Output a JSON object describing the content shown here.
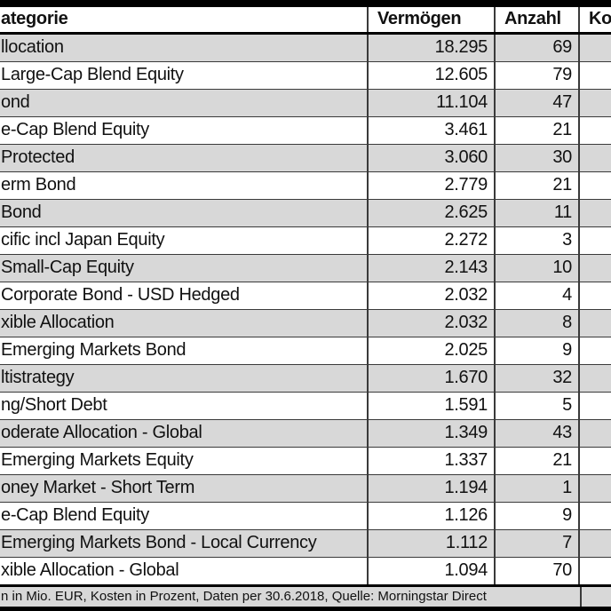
{
  "chart_data": {
    "type": "table",
    "title_visible": "ategorie",
    "columns": [
      "ategorie",
      "Vermögen",
      "Anzahl",
      "Ko"
    ],
    "rows": [
      {
        "kategorie": "llocation",
        "vermoegen": "18.295",
        "anzahl": "69",
        "kosten": ""
      },
      {
        "kategorie": "Large-Cap Blend Equity",
        "vermoegen": "12.605",
        "anzahl": "79",
        "kosten": ""
      },
      {
        "kategorie": "ond",
        "vermoegen": "11.104",
        "anzahl": "47",
        "kosten": ""
      },
      {
        "kategorie": "e-Cap Blend Equity",
        "vermoegen": "3.461",
        "anzahl": "21",
        "kosten": ""
      },
      {
        "kategorie": "Protected",
        "vermoegen": "3.060",
        "anzahl": "30",
        "kosten": ""
      },
      {
        "kategorie": "erm Bond",
        "vermoegen": "2.779",
        "anzahl": "21",
        "kosten": ""
      },
      {
        "kategorie": "Bond",
        "vermoegen": "2.625",
        "anzahl": "11",
        "kosten": ""
      },
      {
        "kategorie": "cific incl Japan Equity",
        "vermoegen": "2.272",
        "anzahl": "3",
        "kosten": ""
      },
      {
        "kategorie": "Small-Cap Equity",
        "vermoegen": "2.143",
        "anzahl": "10",
        "kosten": ""
      },
      {
        "kategorie": "Corporate Bond - USD Hedged",
        "vermoegen": "2.032",
        "anzahl": "4",
        "kosten": ""
      },
      {
        "kategorie": "xible Allocation",
        "vermoegen": "2.032",
        "anzahl": "8",
        "kosten": ""
      },
      {
        "kategorie": "Emerging Markets Bond",
        "vermoegen": "2.025",
        "anzahl": "9",
        "kosten": ""
      },
      {
        "kategorie": "ltistrategy",
        "vermoegen": "1.670",
        "anzahl": "32",
        "kosten": ""
      },
      {
        "kategorie": "ng/Short Debt",
        "vermoegen": "1.591",
        "anzahl": "5",
        "kosten": ""
      },
      {
        "kategorie": "oderate Allocation - Global",
        "vermoegen": "1.349",
        "anzahl": "43",
        "kosten": ""
      },
      {
        "kategorie": "Emerging Markets Equity",
        "vermoegen": "1.337",
        "anzahl": "21",
        "kosten": ""
      },
      {
        "kategorie": "oney Market - Short Term",
        "vermoegen": "1.194",
        "anzahl": "1",
        "kosten": ""
      },
      {
        "kategorie": "e-Cap Blend Equity",
        "vermoegen": "1.126",
        "anzahl": "9",
        "kosten": ""
      },
      {
        "kategorie": "Emerging Markets Bond - Local Currency",
        "vermoegen": "1.112",
        "anzahl": "7",
        "kosten": ""
      },
      {
        "kategorie": "xible Allocation - Global",
        "vermoegen": "1.094",
        "anzahl": "70",
        "kosten": ""
      }
    ],
    "footnote": "n in Mio. EUR, Kosten in Prozent, Daten per 30.6.2018, Quelle: Morningstar Direct",
    "layout_hints": {
      "alternating_row_shading": "odd rows shaded",
      "numbers_alignment": "right",
      "header_style": "bold, thick bottom border",
      "cropped_edges": "left and right edges of table cut off"
    }
  },
  "colors": {
    "row_alt": "#d8d8d8",
    "row": "#ffffff",
    "border": "#3a3a3a",
    "thick_border": "#000000",
    "frame": "#000000",
    "text": "#111111"
  }
}
